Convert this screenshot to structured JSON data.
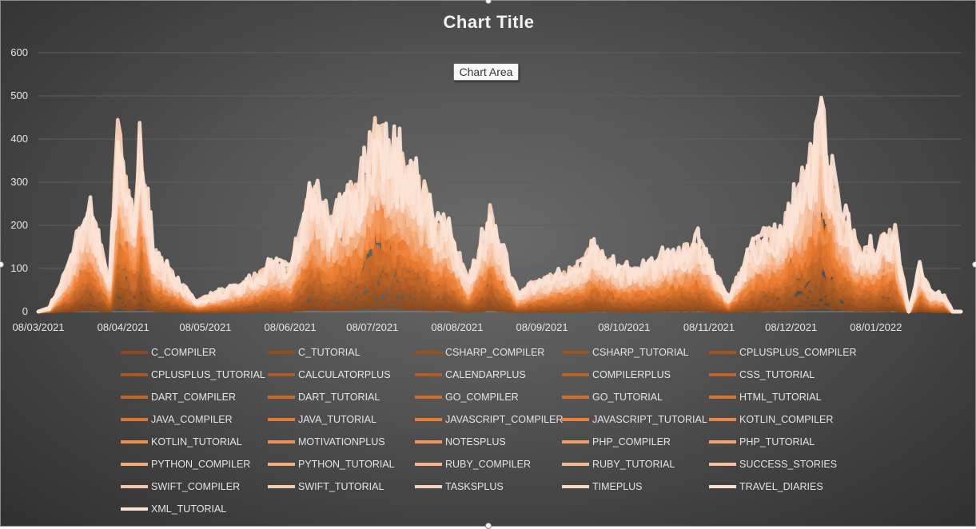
{
  "chart_data": {
    "type": "line",
    "title": "Chart Title",
    "xlabel": "",
    "ylabel": "",
    "ylim": [
      0,
      600
    ],
    "y_ticks": [
      "0",
      "100",
      "200",
      "300",
      "400",
      "500",
      "600"
    ],
    "x_ticks": [
      "08/03/2021",
      "08/04/2021",
      "08/05/2021",
      "08/06/2021",
      "08/07/2021",
      "08/08/2021",
      "08/09/2021",
      "08/10/2021",
      "08/11/2021",
      "08/12/2021",
      "08/01/2022"
    ],
    "x_range": [
      "08/03/2021",
      "08/02/2022"
    ],
    "grid": true,
    "legend_position": "bottom",
    "series_names": [
      "C_COMPILER",
      "C_TUTORIAL",
      "CSHARP_COMPILER",
      "CSHARP_TUTORIAL",
      "CPLUSPLUS_COMPILER",
      "CPLUSPLUS_TUTORIAL",
      "CALCULATORPLUS",
      "CALENDARPLUS",
      "COMPILERPLUS",
      "CSS_TUTORIAL",
      "DART_COMPILER",
      "DART_TUTORIAL",
      "GO_COMPILER",
      "GO_TUTORIAL",
      "HTML_TUTORIAL",
      "JAVA_COMPILER",
      "JAVA_TUTORIAL",
      "JAVASCRIPT_COMPILER",
      "JAVASCRIPT_TUTORIAL",
      "KOTLIN_COMPILER",
      "KOTLIN_TUTORIAL",
      "MOTIVATIONPLUS",
      "NOTESPLUS",
      "PHP_COMPILER",
      "PHP_TUTORIAL",
      "PYTHON_COMPILER",
      "PYTHON_TUTORIAL",
      "RUBY_COMPILER",
      "RUBY_TUTORIAL",
      "SUCCESS_STORIES",
      "SWIFT_COMPILER",
      "SWIFT_TUTORIAL",
      "TASKSPLUS",
      "TIMEPLUS",
      "TRAVEL_DIARIES",
      "XML_TUTORIAL"
    ],
    "envelope_peaks": [
      {
        "date": "08/03/2021",
        "value": 0
      },
      {
        "date": "12/03/2021",
        "value": 12
      },
      {
        "date": "19/03/2021",
        "value": 120
      },
      {
        "date": "24/03/2021",
        "value": 255
      },
      {
        "date": "27/03/2021",
        "value": 285
      },
      {
        "date": "03/04/2021",
        "value": 85
      },
      {
        "date": "06/04/2021",
        "value": 495
      },
      {
        "date": "12/04/2021",
        "value": 262
      },
      {
        "date": "14/04/2021",
        "value": 485
      },
      {
        "date": "19/04/2021",
        "value": 170
      },
      {
        "date": "26/04/2021",
        "value": 100
      },
      {
        "date": "05/05/2021",
        "value": 30
      },
      {
        "date": "19/05/2021",
        "value": 70
      },
      {
        "date": "25/05/2021",
        "value": 90
      },
      {
        "date": "29/05/2021",
        "value": 115
      },
      {
        "date": "03/06/2021",
        "value": 140
      },
      {
        "date": "08/06/2021",
        "value": 120
      },
      {
        "date": "16/06/2021",
        "value": 345
      },
      {
        "date": "22/06/2021",
        "value": 250
      },
      {
        "date": "27/06/2021",
        "value": 300
      },
      {
        "date": "03/07/2021",
        "value": 350
      },
      {
        "date": "09/07/2021",
        "value": 515
      },
      {
        "date": "14/07/2021",
        "value": 455
      },
      {
        "date": "18/07/2021",
        "value": 425
      },
      {
        "date": "27/07/2021",
        "value": 330
      },
      {
        "date": "31/07/2021",
        "value": 240
      },
      {
        "date": "04/08/2021",
        "value": 245
      },
      {
        "date": "12/08/2021",
        "value": 85
      },
      {
        "date": "20/08/2021",
        "value": 265
      },
      {
        "date": "30/08/2021",
        "value": 50
      },
      {
        "date": "06/09/2021",
        "value": 80
      },
      {
        "date": "15/09/2021",
        "value": 105
      },
      {
        "date": "23/09/2021",
        "value": 130
      },
      {
        "date": "26/09/2021",
        "value": 180
      },
      {
        "date": "08/10/2021",
        "value": 115
      },
      {
        "date": "18/10/2021",
        "value": 130
      },
      {
        "date": "24/10/2021",
        "value": 160
      },
      {
        "date": "02/11/2021",
        "value": 180
      },
      {
        "date": "04/11/2021",
        "value": 200
      },
      {
        "date": "15/11/2021",
        "value": 40
      },
      {
        "date": "22/11/2021",
        "value": 145
      },
      {
        "date": "27/11/2021",
        "value": 210
      },
      {
        "date": "04/12/2021",
        "value": 230
      },
      {
        "date": "11/12/2021",
        "value": 340
      },
      {
        "date": "15/12/2021",
        "value": 405
      },
      {
        "date": "19/12/2021",
        "value": 520
      },
      {
        "date": "25/12/2021",
        "value": 310
      },
      {
        "date": "01/01/2022",
        "value": 180
      },
      {
        "date": "08/01/2022",
        "value": 180
      },
      {
        "date": "11/01/2022",
        "value": 225
      },
      {
        "date": "15/01/2022",
        "value": 210
      },
      {
        "date": "20/01/2022",
        "value": 0
      },
      {
        "date": "24/01/2022",
        "value": 120
      },
      {
        "date": "28/01/2022",
        "value": 50
      },
      {
        "date": "02/02/2022",
        "value": 45
      },
      {
        "date": "05/02/2022",
        "value": 0
      },
      {
        "date": "01/03/2022",
        "value": 0
      }
    ]
  },
  "ui": {
    "chart_area_tooltip": "Chart Area"
  },
  "colors": {
    "background": "#474747",
    "gridline": "#5e5e5e",
    "axis_text": "#e6e6e6",
    "palette_dark": "#8c4a1e",
    "palette_mid": "#ed7d31",
    "palette_light": "#fbe3d6"
  }
}
